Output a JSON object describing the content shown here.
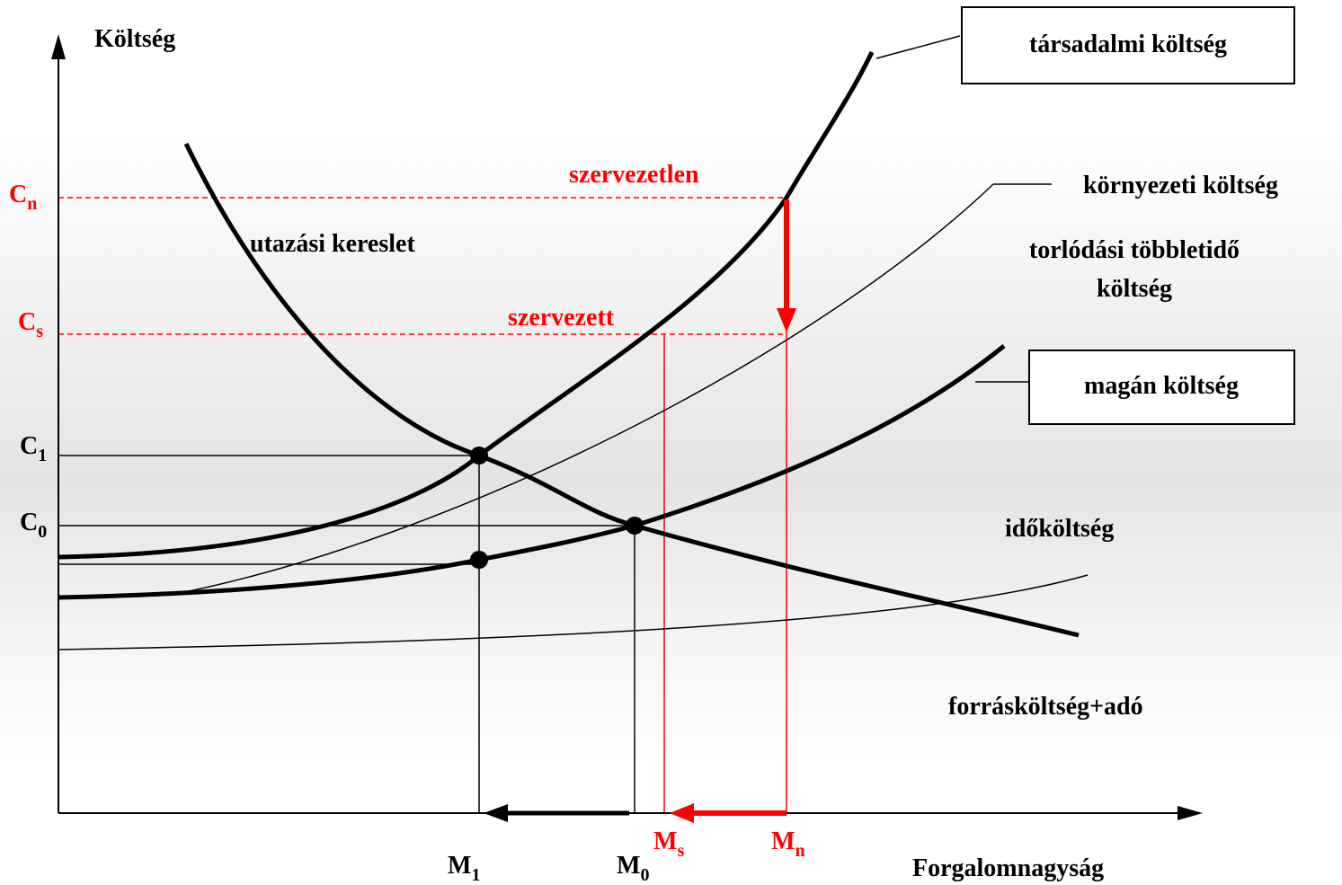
{
  "axes": {
    "y_title": "Költség",
    "x_title": "Forgalomnagyság"
  },
  "curve_labels": {
    "social": "társadalmi költség",
    "environmental": "környezeti költség",
    "congestion": [
      "torlódási többletidő",
      "költség"
    ],
    "private": "magán költség",
    "time": "időköltség",
    "resource": "forrásköltség+adó",
    "demand": "utazási kereslet"
  },
  "annotations": {
    "unorganized": "szervezetlen",
    "organized": "szervezett"
  },
  "cost_levels": [
    {
      "letter": "C",
      "sub": "n"
    },
    {
      "letter": "C",
      "sub": "s"
    },
    {
      "letter": "C",
      "sub": "1"
    },
    {
      "letter": "C",
      "sub": "0"
    }
  ],
  "volume_levels": [
    {
      "letter": "M",
      "sub": "1"
    },
    {
      "letter": "M",
      "sub": "0"
    },
    {
      "letter": "M",
      "sub": "s"
    },
    {
      "letter": "M",
      "sub": "n"
    }
  ]
}
